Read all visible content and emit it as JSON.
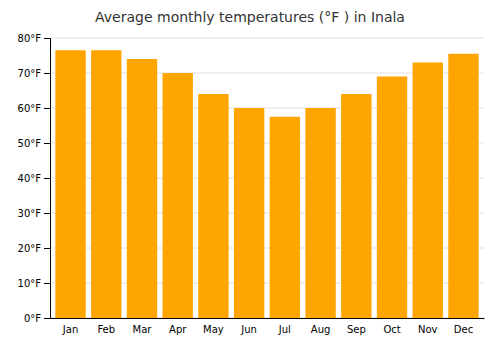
{
  "chart_data": {
    "type": "bar",
    "title": "Average monthly temperatures (°F ) in Inala",
    "categories": [
      "Jan",
      "Feb",
      "Mar",
      "Apr",
      "May",
      "Jun",
      "Jul",
      "Aug",
      "Sep",
      "Oct",
      "Nov",
      "Dec"
    ],
    "values": [
      76.5,
      76.5,
      74.0,
      70.0,
      64.0,
      60.0,
      57.5,
      60.0,
      64.0,
      69.0,
      73.0,
      75.5
    ],
    "color": "#FFA500",
    "ylim": [
      0,
      80
    ],
    "yticks": [
      {
        "value": 0,
        "label": "0°F"
      },
      {
        "value": 10,
        "label": "10°F"
      },
      {
        "value": 20,
        "label": "20°F"
      },
      {
        "value": 30,
        "label": "30°F"
      },
      {
        "value": 40,
        "label": "40°F"
      },
      {
        "value": 50,
        "label": "50°F"
      },
      {
        "value": 60,
        "label": "60°F"
      },
      {
        "value": 70,
        "label": "70°F"
      },
      {
        "value": 80,
        "label": "80°F"
      }
    ],
    "grid": true
  }
}
